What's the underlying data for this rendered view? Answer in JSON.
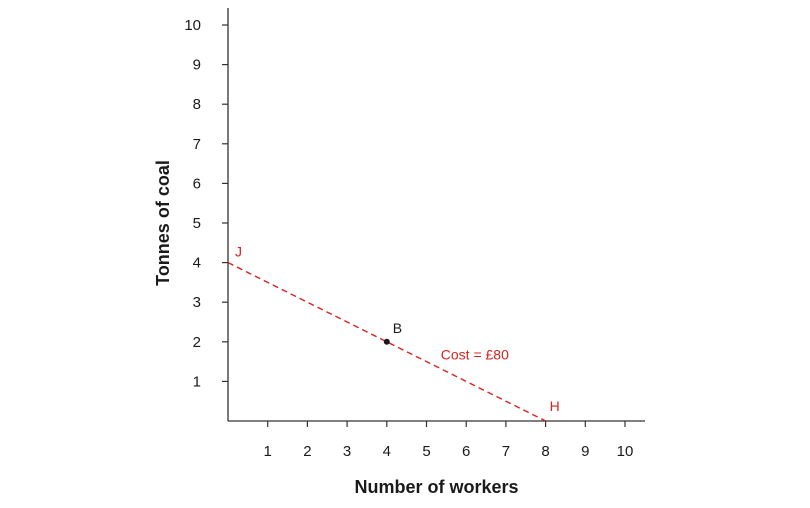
{
  "chart_data": {
    "type": "line",
    "xlabel": "Number of workers",
    "ylabel": "Tonnes of coal",
    "xlim": [
      0,
      10
    ],
    "ylim": [
      0,
      10
    ],
    "x_ticks": [
      1,
      2,
      3,
      4,
      5,
      6,
      7,
      8,
      9,
      10
    ],
    "y_ticks": [
      1,
      2,
      3,
      4,
      5,
      6,
      7,
      8,
      9,
      10
    ],
    "grid": false,
    "series": [
      {
        "name": "Cost = £80",
        "style": "dashed",
        "color": "#d3261f",
        "points": [
          {
            "x": 0,
            "y": 4,
            "label": "J"
          },
          {
            "x": 8,
            "y": 0,
            "label": "H"
          }
        ]
      }
    ],
    "points": [
      {
        "x": 4,
        "y": 2,
        "label": "B",
        "color": "#1a1a1a"
      }
    ]
  }
}
